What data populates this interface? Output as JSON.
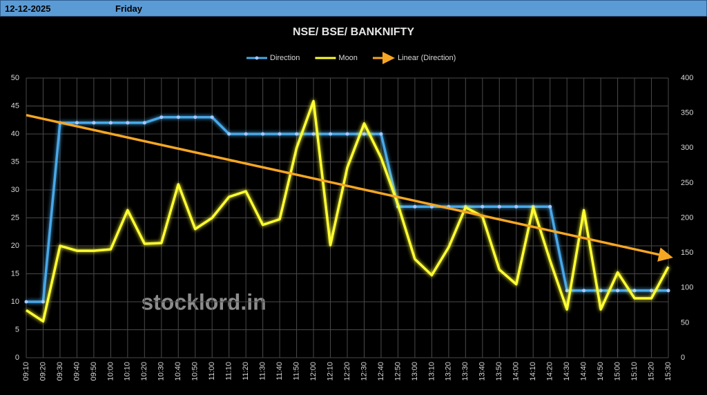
{
  "header": {
    "date": "12-12-2025",
    "day": "Friday"
  },
  "chart_data": {
    "type": "line",
    "title": "NSE/ BSE/ BANKNIFTY",
    "watermark": "stocklord.in",
    "categories": [
      "09:10",
      "09:20",
      "09:30",
      "09:40",
      "09:50",
      "10:00",
      "10:10",
      "10:20",
      "10:30",
      "10:40",
      "10:50",
      "11:00",
      "11:10",
      "11:20",
      "11:30",
      "11:40",
      "11:50",
      "12:00",
      "12:10",
      "12:20",
      "12:30",
      "12:40",
      "12:50",
      "13:00",
      "13:10",
      "13:20",
      "13:30",
      "13:40",
      "13:50",
      "14:00",
      "14:10",
      "14:20",
      "14:30",
      "14:40",
      "14:50",
      "15:00",
      "15:10",
      "15:20",
      "15:30"
    ],
    "series": [
      {
        "name": "Direction",
        "color": "#4aa8e8",
        "axis": "y",
        "markers": true,
        "values": [
          10,
          10,
          42,
          42,
          42,
          42,
          42,
          42,
          43,
          43,
          43,
          43,
          40,
          40,
          40,
          40,
          40,
          40,
          40,
          40,
          40,
          40,
          27,
          27,
          27,
          27,
          27,
          27,
          27,
          27,
          27,
          27,
          12,
          12,
          12,
          12,
          12,
          12,
          12
        ]
      },
      {
        "name": "Moon",
        "color": "#ffff33",
        "axis": "y2",
        "markers": false,
        "values": [
          68,
          52,
          160,
          153,
          153,
          155,
          211,
          163,
          164,
          248,
          184,
          200,
          230,
          238,
          190,
          198,
          300,
          367,
          161,
          272,
          335,
          286,
          219,
          141,
          118,
          158,
          215,
          202,
          126,
          105,
          215,
          139,
          69,
          211,
          69,
          122,
          85,
          85,
          130
        ]
      }
    ],
    "trendline": {
      "name": "Linear (Direction)",
      "color": "#f5a623"
    },
    "ylim": [
      0,
      50
    ],
    "yticks": [
      0,
      5,
      10,
      15,
      20,
      25,
      30,
      35,
      40,
      45,
      50
    ],
    "y2lim": [
      0,
      400
    ],
    "y2ticks": [
      0,
      50,
      100,
      150,
      200,
      250,
      300,
      350,
      400
    ],
    "grid": true
  }
}
